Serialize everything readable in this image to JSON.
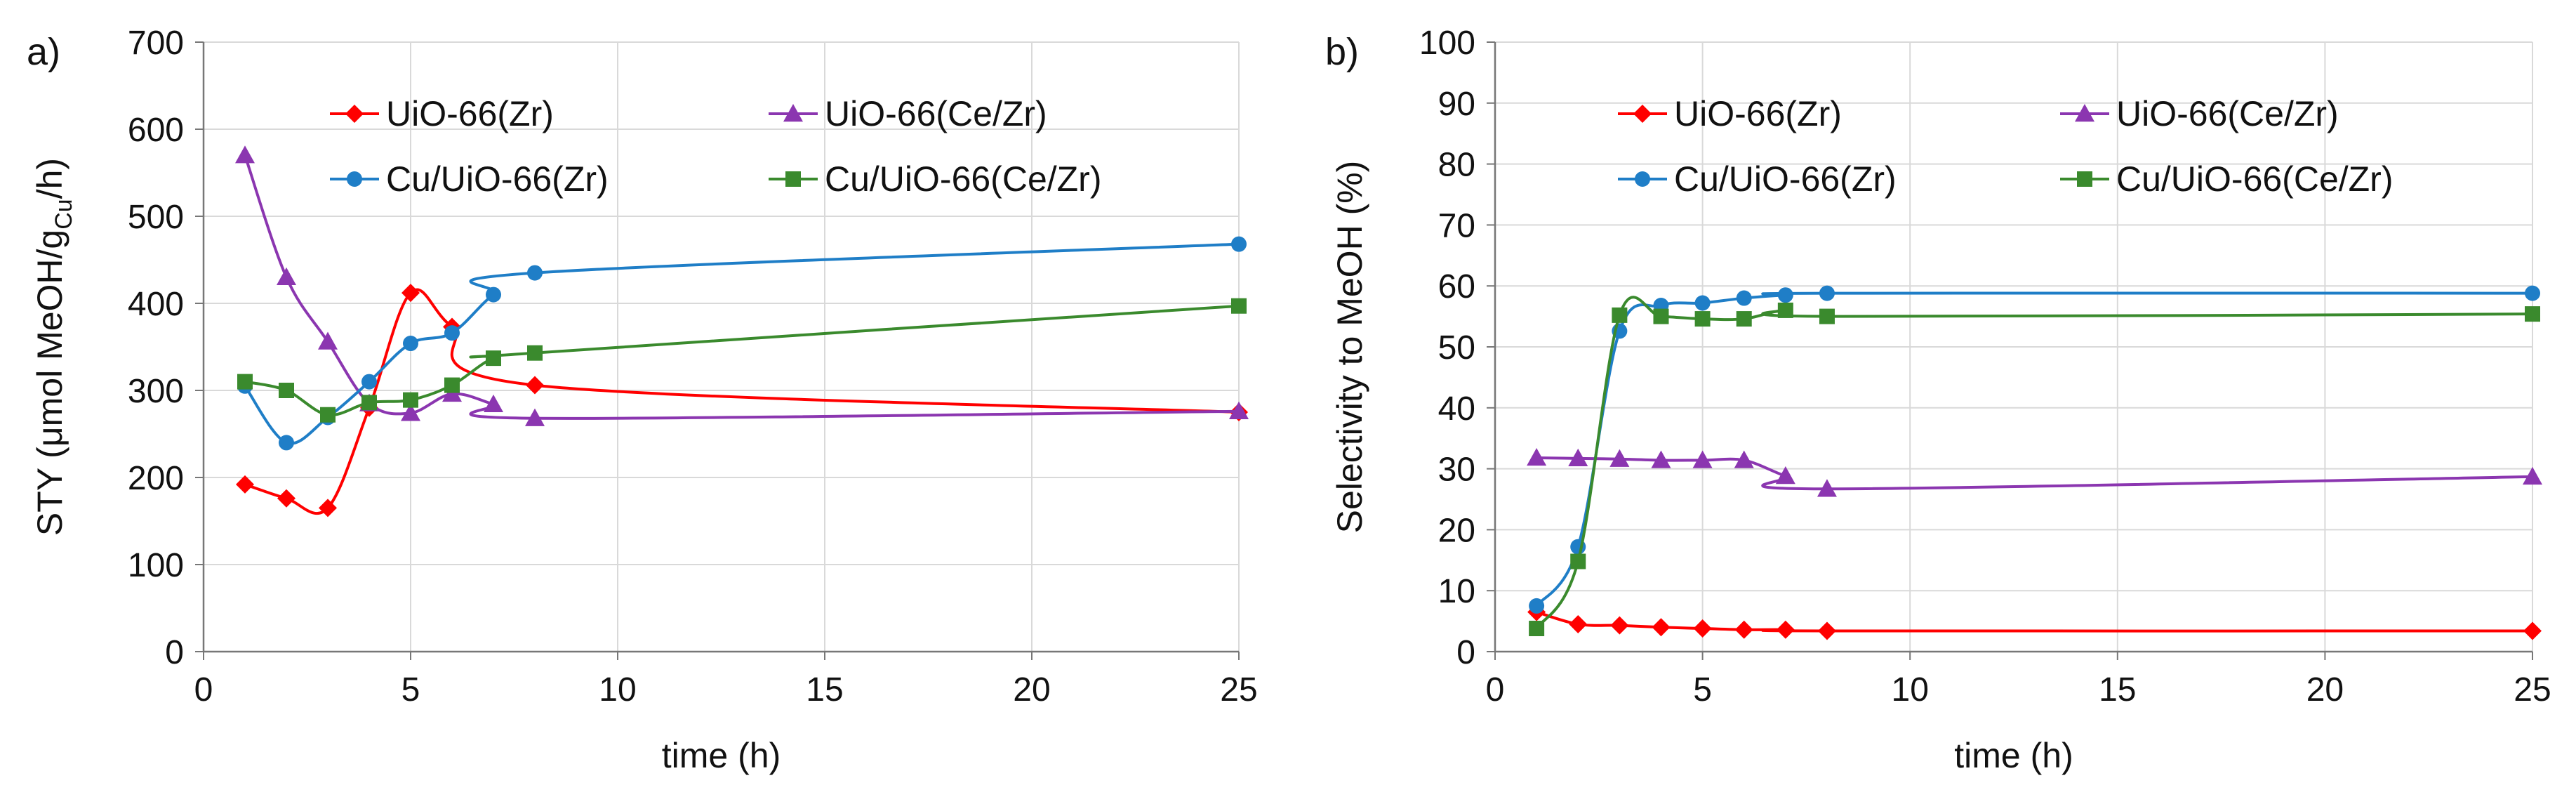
{
  "colors": {
    "red": "#ff0000",
    "purple": "#8b36b0",
    "blue": "#1f7ec7",
    "green": "#3a8a2d",
    "grid": "#d9d9d9",
    "axis": "#777777"
  },
  "chart_data": [
    {
      "type": "line",
      "panel_label": "a)",
      "title": "",
      "xlabel": "time (h)",
      "ylabel": "STY (μmol MeOH/g",
      "ylabel_sub": "Cu",
      "ylabel_end": "/h)",
      "xlim": [
        0,
        25
      ],
      "ylim": [
        0,
        700
      ],
      "xticks": [
        0,
        5,
        10,
        15,
        20,
        25
      ],
      "yticks": [
        0,
        100,
        200,
        300,
        400,
        500,
        600,
        700
      ],
      "grid": true,
      "legend_position": "top",
      "x": [
        1,
        2,
        3,
        4,
        5,
        6,
        7,
        8,
        25
      ],
      "series": [
        {
          "name": "UiO-66(Zr)",
          "color": "red",
          "marker": "diamond",
          "x": [
            1,
            2,
            3,
            4,
            5,
            6,
            8,
            25
          ],
          "values": [
            192,
            176,
            165,
            280,
            412,
            373,
            306,
            275
          ]
        },
        {
          "name": "UiO-66(Ce/Zr)",
          "color": "purple",
          "marker": "triangle",
          "x": [
            1,
            2,
            3,
            4,
            5,
            6,
            7,
            8,
            25
          ],
          "values": [
            570,
            430,
            356,
            285,
            274,
            296,
            284,
            268,
            276
          ]
        },
        {
          "name": "Cu/UiO-66(Zr)",
          "color": "blue",
          "marker": "circle",
          "x": [
            1,
            2,
            3,
            4,
            5,
            6,
            7,
            8,
            25
          ],
          "values": [
            305,
            240,
            269,
            310,
            354,
            366,
            410,
            435,
            468
          ]
        },
        {
          "name": "Cu/UiO-66(Ce/Zr)",
          "color": "green",
          "marker": "square",
          "x": [
            1,
            2,
            3,
            4,
            5,
            6,
            7,
            8,
            25
          ],
          "values": [
            310,
            300,
            272,
            286,
            289,
            306,
            337,
            343,
            397
          ]
        }
      ]
    },
    {
      "type": "line",
      "panel_label": "b)",
      "title": "",
      "xlabel": "time (h)",
      "ylabel": "Selectivity to MeOH (%)",
      "ylabel_sub": "",
      "ylabel_end": "",
      "xlim": [
        0,
        25
      ],
      "ylim": [
        0,
        100
      ],
      "xticks": [
        0,
        5,
        10,
        15,
        20,
        25
      ],
      "yticks": [
        0,
        10,
        20,
        30,
        40,
        50,
        60,
        70,
        80,
        90,
        100
      ],
      "grid": true,
      "legend_position": "top",
      "series": [
        {
          "name": "UiO-66(Zr)",
          "color": "red",
          "marker": "diamond",
          "x": [
            1,
            2,
            3,
            4,
            5,
            6,
            7,
            8,
            25
          ],
          "values": [
            6.5,
            4.5,
            4.3,
            4.0,
            3.8,
            3.6,
            3.6,
            3.4,
            3.4
          ]
        },
        {
          "name": "UiO-66(Ce/Zr)",
          "color": "purple",
          "marker": "triangle",
          "x": [
            1,
            2,
            3,
            4,
            5,
            6,
            7,
            8,
            25
          ],
          "values": [
            31.8,
            31.7,
            31.6,
            31.4,
            31.4,
            31.4,
            28.8,
            26.7,
            28.7
          ]
        },
        {
          "name": "Cu/UiO-66(Zr)",
          "color": "blue",
          "marker": "circle",
          "x": [
            1,
            2,
            3,
            4,
            5,
            6,
            7,
            8,
            25
          ],
          "values": [
            7.5,
            17.2,
            52.6,
            56.8,
            57.2,
            58.0,
            58.5,
            58.8,
            58.8
          ]
        },
        {
          "name": "Cu/UiO-66(Ce/Zr)",
          "color": "green",
          "marker": "square",
          "x": [
            1,
            2,
            3,
            4,
            5,
            6,
            7,
            8,
            25
          ],
          "values": [
            3.8,
            14.8,
            55.2,
            55.0,
            54.6,
            54.6,
            56.0,
            55.0,
            55.4
          ]
        }
      ]
    }
  ]
}
